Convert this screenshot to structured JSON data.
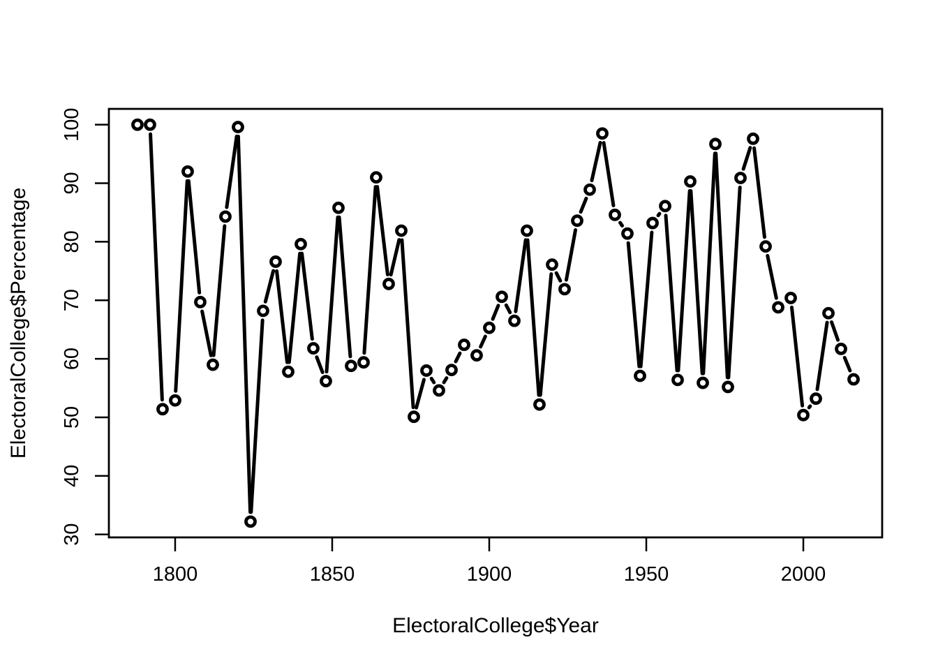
{
  "figure": {
    "background": "#ffffff",
    "foreground": "#000000"
  },
  "chart_data": {
    "type": "line",
    "title": "",
    "xlabel": "ElectoralCollege$Year",
    "ylabel": "ElectoralCollege$Percentage",
    "x": [
      1788,
      1792,
      1796,
      1800,
      1804,
      1808,
      1812,
      1816,
      1820,
      1824,
      1828,
      1832,
      1836,
      1840,
      1844,
      1848,
      1852,
      1856,
      1860,
      1864,
      1868,
      1872,
      1876,
      1880,
      1884,
      1888,
      1892,
      1896,
      1900,
      1904,
      1908,
      1912,
      1916,
      1920,
      1924,
      1928,
      1932,
      1936,
      1940,
      1944,
      1948,
      1952,
      1956,
      1960,
      1964,
      1968,
      1972,
      1976,
      1980,
      1984,
      1988,
      1992,
      1996,
      2000,
      2004,
      2008,
      2012,
      2016
    ],
    "y": [
      100,
      100,
      51.4,
      52.9,
      92.0,
      69.7,
      59.0,
      84.3,
      99.6,
      32.2,
      68.2,
      76.6,
      57.8,
      79.6,
      61.8,
      56.2,
      85.8,
      58.8,
      59.4,
      91.0,
      72.8,
      81.9,
      50.1,
      58.0,
      54.6,
      58.1,
      62.4,
      60.6,
      65.3,
      70.6,
      66.5,
      81.9,
      52.2,
      76.1,
      71.9,
      83.6,
      88.9,
      98.5,
      84.6,
      81.4,
      57.1,
      83.2,
      86.1,
      56.4,
      90.3,
      55.9,
      96.7,
      55.2,
      90.9,
      97.6,
      79.2,
      68.8,
      70.4,
      50.4,
      53.2,
      67.8,
      61.7,
      56.5
    ],
    "xticks": [
      1800,
      1850,
      1900,
      1950,
      2000
    ],
    "yticks": [
      30,
      40,
      50,
      60,
      70,
      80,
      90,
      100
    ],
    "xlim": [
      1778.9,
      2025.1
    ],
    "ylim": [
      29.5,
      102.7
    ],
    "grid": false,
    "legend": "none",
    "marker": "open-circle",
    "plot_style": "points-and-lines",
    "line_color": "#000000",
    "marker_color": "#000000"
  }
}
